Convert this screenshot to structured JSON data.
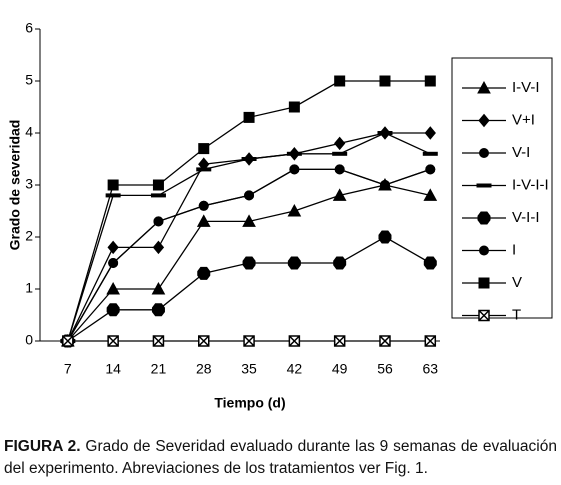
{
  "chart_data": {
    "type": "line",
    "xlabel": "Tiempo (d)",
    "ylabel": "Grado de severidad",
    "x": [
      7,
      14,
      21,
      28,
      35,
      42,
      49,
      56,
      63
    ],
    "xlim": [
      2.7,
      64.5
    ],
    "xticks": [
      7,
      14,
      21,
      28,
      35,
      42,
      49,
      56,
      63
    ],
    "ylim": [
      0,
      6
    ],
    "yticks": [
      0,
      1,
      2,
      3,
      4,
      5,
      6
    ],
    "series": [
      {
        "name": "I-V-I",
        "color": "#000000",
        "marker": "triangle",
        "values": [
          0,
          1,
          1,
          2.3,
          2.3,
          2.5,
          2.8,
          3,
          2.8
        ]
      },
      {
        "name": "V+I",
        "color": "#000000",
        "marker": "diamond",
        "values": [
          0,
          1.8,
          1.8,
          3.4,
          3.5,
          3.6,
          3.8,
          4,
          4
        ]
      },
      {
        "name": "V-I",
        "color": "#000000",
        "marker": "circle",
        "values": [
          0,
          1.5,
          2.3,
          2.6,
          2.8,
          3.3,
          3.3,
          3,
          3.3
        ]
      },
      {
        "name": "I-V-I-I",
        "color": "#000000",
        "marker": "dash",
        "values": [
          0,
          2.8,
          2.8,
          3.3,
          3.5,
          3.6,
          3.6,
          4,
          3.6
        ]
      },
      {
        "name": "V-I-I",
        "color": "#000000",
        "marker": "hexagon",
        "values": [
          0,
          0.6,
          0.6,
          1.3,
          1.5,
          1.5,
          1.5,
          2,
          1.5
        ]
      },
      {
        "name": "I",
        "color": "#000000",
        "marker": "circle",
        "values": [
          0,
          1.5,
          2.3,
          2.6,
          2.8,
          3.3,
          3.3,
          3,
          3.3
        ]
      },
      {
        "name": "V",
        "color": "#000000",
        "marker": "square",
        "values": [
          0,
          3,
          3,
          3.7,
          4.3,
          4.5,
          5,
          5,
          5
        ]
      },
      {
        "name": "T",
        "color": "#000000",
        "marker": "xbox",
        "values": [
          0,
          0,
          0,
          0,
          0,
          0,
          0,
          0,
          0
        ]
      }
    ],
    "caption_label": "FIGURA 2.",
    "caption": "Grado de Severidad evaluado durante las 9 semanas de evaluación del experimento. Abreviaciones de los tratamientos ver Fig. 1."
  }
}
